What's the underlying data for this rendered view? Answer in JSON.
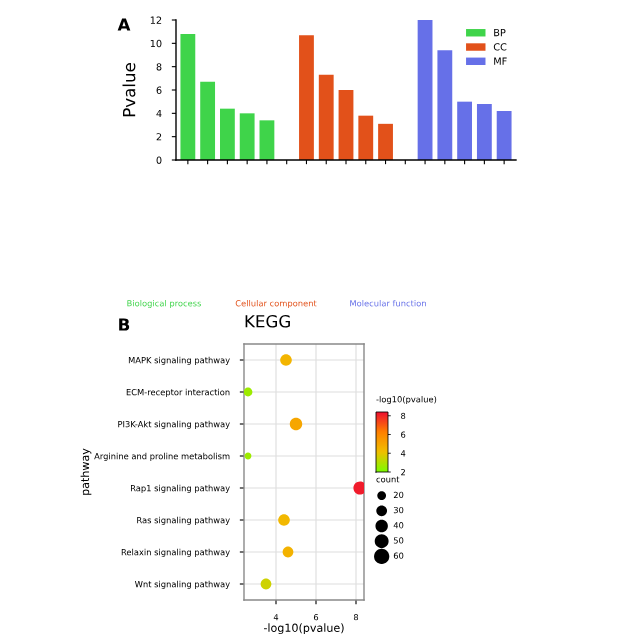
{
  "chart_data": [
    {
      "type": "bar",
      "ylabel": "Pvalue",
      "categories": [
        null,
        null,
        null,
        null,
        null,
        null,
        null,
        null,
        null,
        null,
        null,
        null,
        null,
        null,
        null,
        null,
        null
      ],
      "series": [
        {
          "name": "BP",
          "color": "#3fd44a",
          "values": [
            10.8,
            6.7,
            4.4,
            4.0,
            3.4,
            null,
            null,
            null,
            null,
            null,
            null,
            null,
            null,
            null,
            null,
            null,
            null
          ]
        },
        {
          "name": "CC",
          "color": "#e2511a",
          "values": [
            null,
            null,
            null,
            null,
            null,
            null,
            10.7,
            7.3,
            6.0,
            3.8,
            3.1,
            null,
            null,
            null,
            null,
            null,
            null
          ]
        },
        {
          "name": "MF",
          "color": "#6670e8",
          "values": [
            null,
            null,
            null,
            null,
            null,
            null,
            null,
            null,
            null,
            null,
            null,
            null,
            12.0,
            9.4,
            5.0,
            4.8,
            4.2
          ]
        }
      ],
      "ylim": [
        0,
        12
      ],
      "yticks": [
        0,
        2,
        4,
        6,
        8,
        10,
        12
      ],
      "legend": "top right",
      "grid": false,
      "annotations": [
        "A",
        "Biological process",
        "Cellular component",
        "Molecular function"
      ]
    },
    {
      "type": "scatter",
      "title": "KEGG",
      "xlabel": "-log10(pvalue)",
      "ylabel": "pathway",
      "categories": [
        "MAPK signaling pathway",
        "ECM-receptor interaction",
        "PI3K-Akt signaling pathway",
        "Arginine and proline metabolism",
        "Rap1 signaling pathway",
        "Ras signaling pathway",
        "Relaxin signaling pathway",
        "Wnt signaling pathway"
      ],
      "orientation": "horizontal",
      "values": [
        4.5,
        2.6,
        5.0,
        2.6,
        8.2,
        4.4,
        4.6,
        3.5
      ],
      "cvalues": [
        4.5,
        2.6,
        5.0,
        2.6,
        8.2,
        4.4,
        4.6,
        3.5
      ],
      "sizes": [
        35,
        20,
        40,
        12,
        45,
        35,
        30,
        30
      ],
      "size_legend": [
        20,
        30,
        40,
        50,
        60
      ],
      "legend_title": "count",
      "xlim": [
        2.4,
        8.4
      ],
      "xticks": [
        4,
        6,
        8
      ],
      "clim": [
        2,
        8.4
      ],
      "cticks": [
        2,
        4,
        6,
        8
      ],
      "clabel": "-log10(pvalue)",
      "grid": true,
      "annotations": [
        "B"
      ]
    }
  ]
}
